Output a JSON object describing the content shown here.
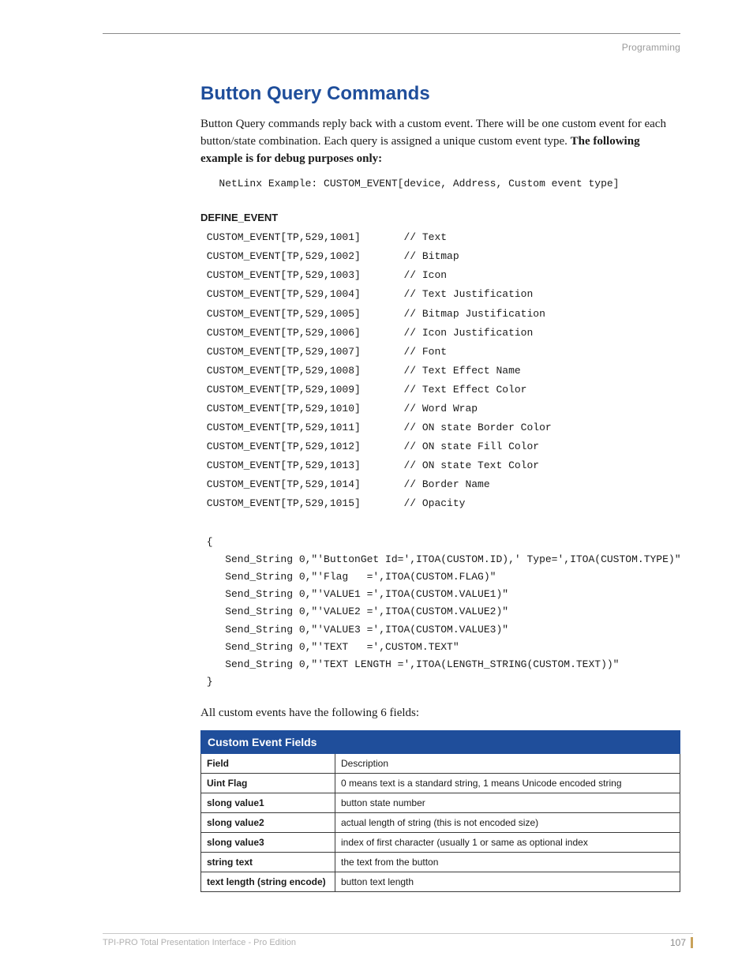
{
  "breadcrumb": "Programming",
  "title": "Button Query Commands",
  "intro_plain": "Button Query commands reply back with a custom event. There will be one custom event for each button/state combination. Each query is assigned a unique custom event type. ",
  "intro_bold": "The following example is for debug purposes only:",
  "example_line": "   NetLinx Example: CUSTOM_EVENT[device, Address, Custom event type]",
  "define_event_label": "DEFINE_EVENT",
  "events": [
    {
      "code": "CUSTOM_EVENT[TP,529,1001]",
      "comment": "// Text"
    },
    {
      "code": "CUSTOM_EVENT[TP,529,1002]",
      "comment": "// Bitmap"
    },
    {
      "code": "CUSTOM_EVENT[TP,529,1003]",
      "comment": "// Icon"
    },
    {
      "code": "CUSTOM_EVENT[TP,529,1004]",
      "comment": "// Text Justification"
    },
    {
      "code": "CUSTOM_EVENT[TP,529,1005]",
      "comment": "// Bitmap Justification"
    },
    {
      "code": "CUSTOM_EVENT[TP,529,1006]",
      "comment": "// Icon Justification"
    },
    {
      "code": "CUSTOM_EVENT[TP,529,1007]",
      "comment": "// Font"
    },
    {
      "code": "CUSTOM_EVENT[TP,529,1008]",
      "comment": "// Text Effect Name"
    },
    {
      "code": "CUSTOM_EVENT[TP,529,1009]",
      "comment": "// Text Effect Color"
    },
    {
      "code": "CUSTOM_EVENT[TP,529,1010]",
      "comment": "// Word Wrap"
    },
    {
      "code": "CUSTOM_EVENT[TP,529,1011]",
      "comment": "// ON state Border Color"
    },
    {
      "code": "CUSTOM_EVENT[TP,529,1012]",
      "comment": "// ON state Fill Color"
    },
    {
      "code": "CUSTOM_EVENT[TP,529,1013]",
      "comment": "// ON state Text Color"
    },
    {
      "code": "CUSTOM_EVENT[TP,529,1014]",
      "comment": "// Border Name"
    },
    {
      "code": "CUSTOM_EVENT[TP,529,1015]",
      "comment": "// Opacity"
    }
  ],
  "code_block": " {\n    Send_String 0,\"'ButtonGet Id=',ITOA(CUSTOM.ID),' Type=',ITOA(CUSTOM.TYPE)\"\n    Send_String 0,\"'Flag   =',ITOA(CUSTOM.FLAG)\"\n    Send_String 0,\"'VALUE1 =',ITOA(CUSTOM.VALUE1)\"\n    Send_String 0,\"'VALUE2 =',ITOA(CUSTOM.VALUE2)\"\n    Send_String 0,\"'VALUE3 =',ITOA(CUSTOM.VALUE3)\"\n    Send_String 0,\"'TEXT   =',CUSTOM.TEXT\"\n    Send_String 0,\"'TEXT LENGTH =',ITOA(LENGTH_STRING(CUSTOM.TEXT))\"\n }",
  "after_block": "All custom events have the following 6 fields:",
  "table": {
    "title": "Custom Event Fields",
    "columns": [
      "Field",
      "Description"
    ],
    "rows": [
      [
        "Uint Flag",
        "0 means text is a standard string, 1 means Unicode encoded string"
      ],
      [
        "slong value1",
        "button state number"
      ],
      [
        "slong value2",
        "actual length of string (this is not encoded size)"
      ],
      [
        "slong value3",
        "index of first character (usually 1 or same as optional index"
      ],
      [
        "string text",
        "the text from the button"
      ],
      [
        "text length (string encode)",
        "button text length"
      ]
    ]
  },
  "footer": {
    "left": "TPI-PRO Total Presentation Interface - Pro Edition",
    "page": "107"
  },
  "colors": {
    "accent": "#1f4e9b",
    "text": "#1a1a1a",
    "muted": "#9a9a9a",
    "rule": "#8a8a8a",
    "footer_accent": "#c9a25a"
  }
}
